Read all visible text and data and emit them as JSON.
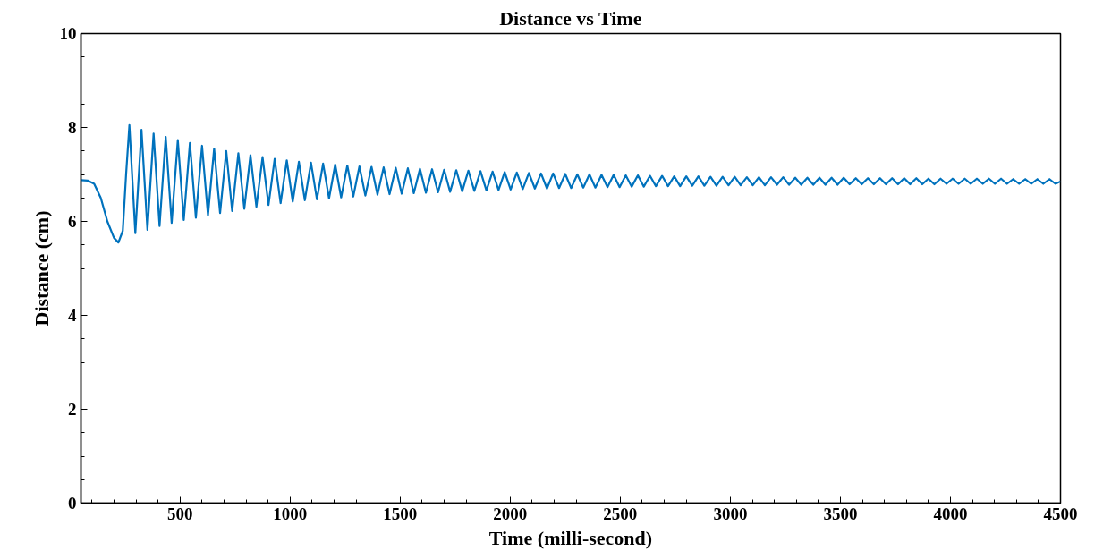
{
  "chart_data": {
    "type": "line",
    "title": "Distance vs Time",
    "xlabel": "Time (milli-second)",
    "ylabel": "Distance (cm)",
    "xlim": [
      50,
      4500
    ],
    "ylim": [
      0,
      10
    ],
    "xticks": [
      500,
      1000,
      1500,
      2000,
      2500,
      3000,
      3500,
      4000,
      4500
    ],
    "yticks": [
      0,
      2,
      4,
      6,
      8,
      10
    ],
    "grid": false,
    "marker": "none",
    "line_style": "solid",
    "series": [
      {
        "color": "#0072bd",
        "x": [
          50,
          80,
          110,
          140,
          170,
          200,
          220,
          240,
          255,
          270,
          297,
          325,
          352,
          380,
          407,
          435,
          462,
          490,
          517,
          545,
          572,
          600,
          627,
          655,
          682,
          710,
          737,
          765,
          792,
          820,
          847,
          875,
          902,
          930,
          957,
          985,
          1012,
          1040,
          1067,
          1095,
          1122,
          1150,
          1177,
          1205,
          1232,
          1260,
          1287,
          1315,
          1342,
          1370,
          1397,
          1425,
          1452,
          1480,
          1507,
          1535,
          1562,
          1590,
          1617,
          1645,
          1672,
          1700,
          1727,
          1755,
          1782,
          1810,
          1837,
          1865,
          1892,
          1920,
          1947,
          1975,
          2002,
          2030,
          2057,
          2085,
          2112,
          2140,
          2167,
          2195,
          2222,
          2250,
          2277,
          2305,
          2332,
          2360,
          2387,
          2415,
          2442,
          2470,
          2497,
          2525,
          2552,
          2580,
          2607,
          2635,
          2662,
          2690,
          2717,
          2745,
          2772,
          2800,
          2827,
          2855,
          2882,
          2910,
          2937,
          2965,
          2992,
          3020,
          3047,
          3075,
          3102,
          3130,
          3157,
          3185,
          3212,
          3240,
          3267,
          3295,
          3322,
          3350,
          3377,
          3405,
          3432,
          3460,
          3487,
          3515,
          3542,
          3570,
          3597,
          3625,
          3652,
          3680,
          3707,
          3735,
          3762,
          3790,
          3817,
          3845,
          3872,
          3900,
          3927,
          3955,
          3982,
          4010,
          4037,
          4065,
          4092,
          4120,
          4147,
          4175,
          4202,
          4230,
          4257,
          4285,
          4312,
          4340,
          4367,
          4395,
          4422,
          4450,
          4477,
          4500
        ],
        "values": [
          6.88,
          6.87,
          6.8,
          6.5,
          6.0,
          5.65,
          5.55,
          5.8,
          7.0,
          8.05,
          5.75,
          7.95,
          5.82,
          7.87,
          5.9,
          7.8,
          5.97,
          7.73,
          6.03,
          7.67,
          6.08,
          7.61,
          6.13,
          7.55,
          6.18,
          7.5,
          6.22,
          7.45,
          6.27,
          7.41,
          6.31,
          7.37,
          6.35,
          7.33,
          6.39,
          7.3,
          6.42,
          7.27,
          6.45,
          7.25,
          6.47,
          7.23,
          6.49,
          7.21,
          6.51,
          7.19,
          6.53,
          7.17,
          6.55,
          7.16,
          6.57,
          7.15,
          6.58,
          7.14,
          6.59,
          7.13,
          6.6,
          7.12,
          6.61,
          7.11,
          6.62,
          7.1,
          6.63,
          7.09,
          6.64,
          7.08,
          6.65,
          7.07,
          6.66,
          7.06,
          6.67,
          7.05,
          6.68,
          7.04,
          6.69,
          7.03,
          6.7,
          7.02,
          6.7,
          7.02,
          6.71,
          7.01,
          6.71,
          7.0,
          6.72,
          7.0,
          6.72,
          6.99,
          6.73,
          6.99,
          6.73,
          6.98,
          6.74,
          6.98,
          6.74,
          6.97,
          6.75,
          6.97,
          6.75,
          6.96,
          6.75,
          6.96,
          6.76,
          6.96,
          6.76,
          6.95,
          6.76,
          6.95,
          6.77,
          6.95,
          6.77,
          6.94,
          6.77,
          6.94,
          6.77,
          6.94,
          6.78,
          6.94,
          6.78,
          6.93,
          6.78,
          6.93,
          6.78,
          6.93,
          6.78,
          6.93,
          6.78,
          6.93,
          6.79,
          6.92,
          6.79,
          6.92,
          6.79,
          6.92,
          6.79,
          6.92,
          6.79,
          6.92,
          6.79,
          6.92,
          6.79,
          6.91,
          6.79,
          6.91,
          6.8,
          6.91,
          6.8,
          6.91,
          6.8,
          6.91,
          6.8,
          6.91,
          6.8,
          6.91,
          6.8,
          6.9,
          6.8,
          6.9,
          6.8,
          6.9,
          6.8,
          6.9,
          6.8,
          6.85
        ]
      }
    ]
  }
}
